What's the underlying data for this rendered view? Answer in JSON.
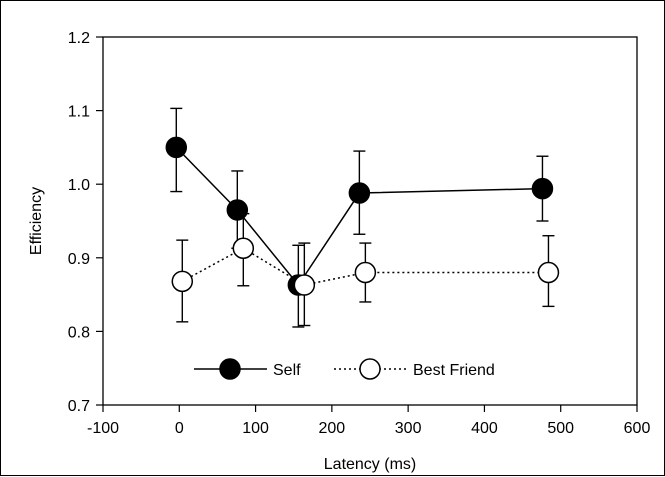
{
  "chart_data": {
    "type": "line",
    "xlabel": "Latency (ms)",
    "ylabel": "Efficiency",
    "xlim": [
      -100,
      600
    ],
    "ylim": [
      0.7,
      1.2
    ],
    "xticks": [
      -100,
      0,
      100,
      200,
      300,
      400,
      500,
      600
    ],
    "yticks": [
      0.7,
      0.8,
      0.9,
      1.0,
      1.1,
      1.2
    ],
    "xtick_labels": [
      "-100",
      "0",
      "100",
      "200",
      "300",
      "400",
      "500",
      "600"
    ],
    "ytick_labels": [
      "0.7",
      "0.8",
      "0.9",
      "1.0",
      "1.1",
      "1.2"
    ],
    "legend_position": "bottom-center",
    "grid": false,
    "series": [
      {
        "name": "Self",
        "marker": "filled-circle",
        "line_style": "solid",
        "color": "#000000",
        "x": [
          0,
          80,
          160,
          240,
          480
        ],
        "y": [
          1.05,
          0.965,
          0.863,
          0.988,
          0.994
        ],
        "err_low": [
          0.99,
          0.913,
          0.806,
          0.932,
          0.95
        ],
        "err_high": [
          1.103,
          1.018,
          0.917,
          1.045,
          1.038
        ]
      },
      {
        "name": "Best Friend",
        "marker": "open-circle",
        "line_style": "dotted",
        "color": "#000000",
        "x": [
          0,
          80,
          160,
          240,
          480
        ],
        "y": [
          0.868,
          0.913,
          0.863,
          0.88,
          0.88
        ],
        "err_low": [
          0.813,
          0.862,
          0.808,
          0.84,
          0.834
        ],
        "err_high": [
          0.924,
          0.96,
          0.92,
          0.92,
          0.93
        ]
      }
    ]
  }
}
